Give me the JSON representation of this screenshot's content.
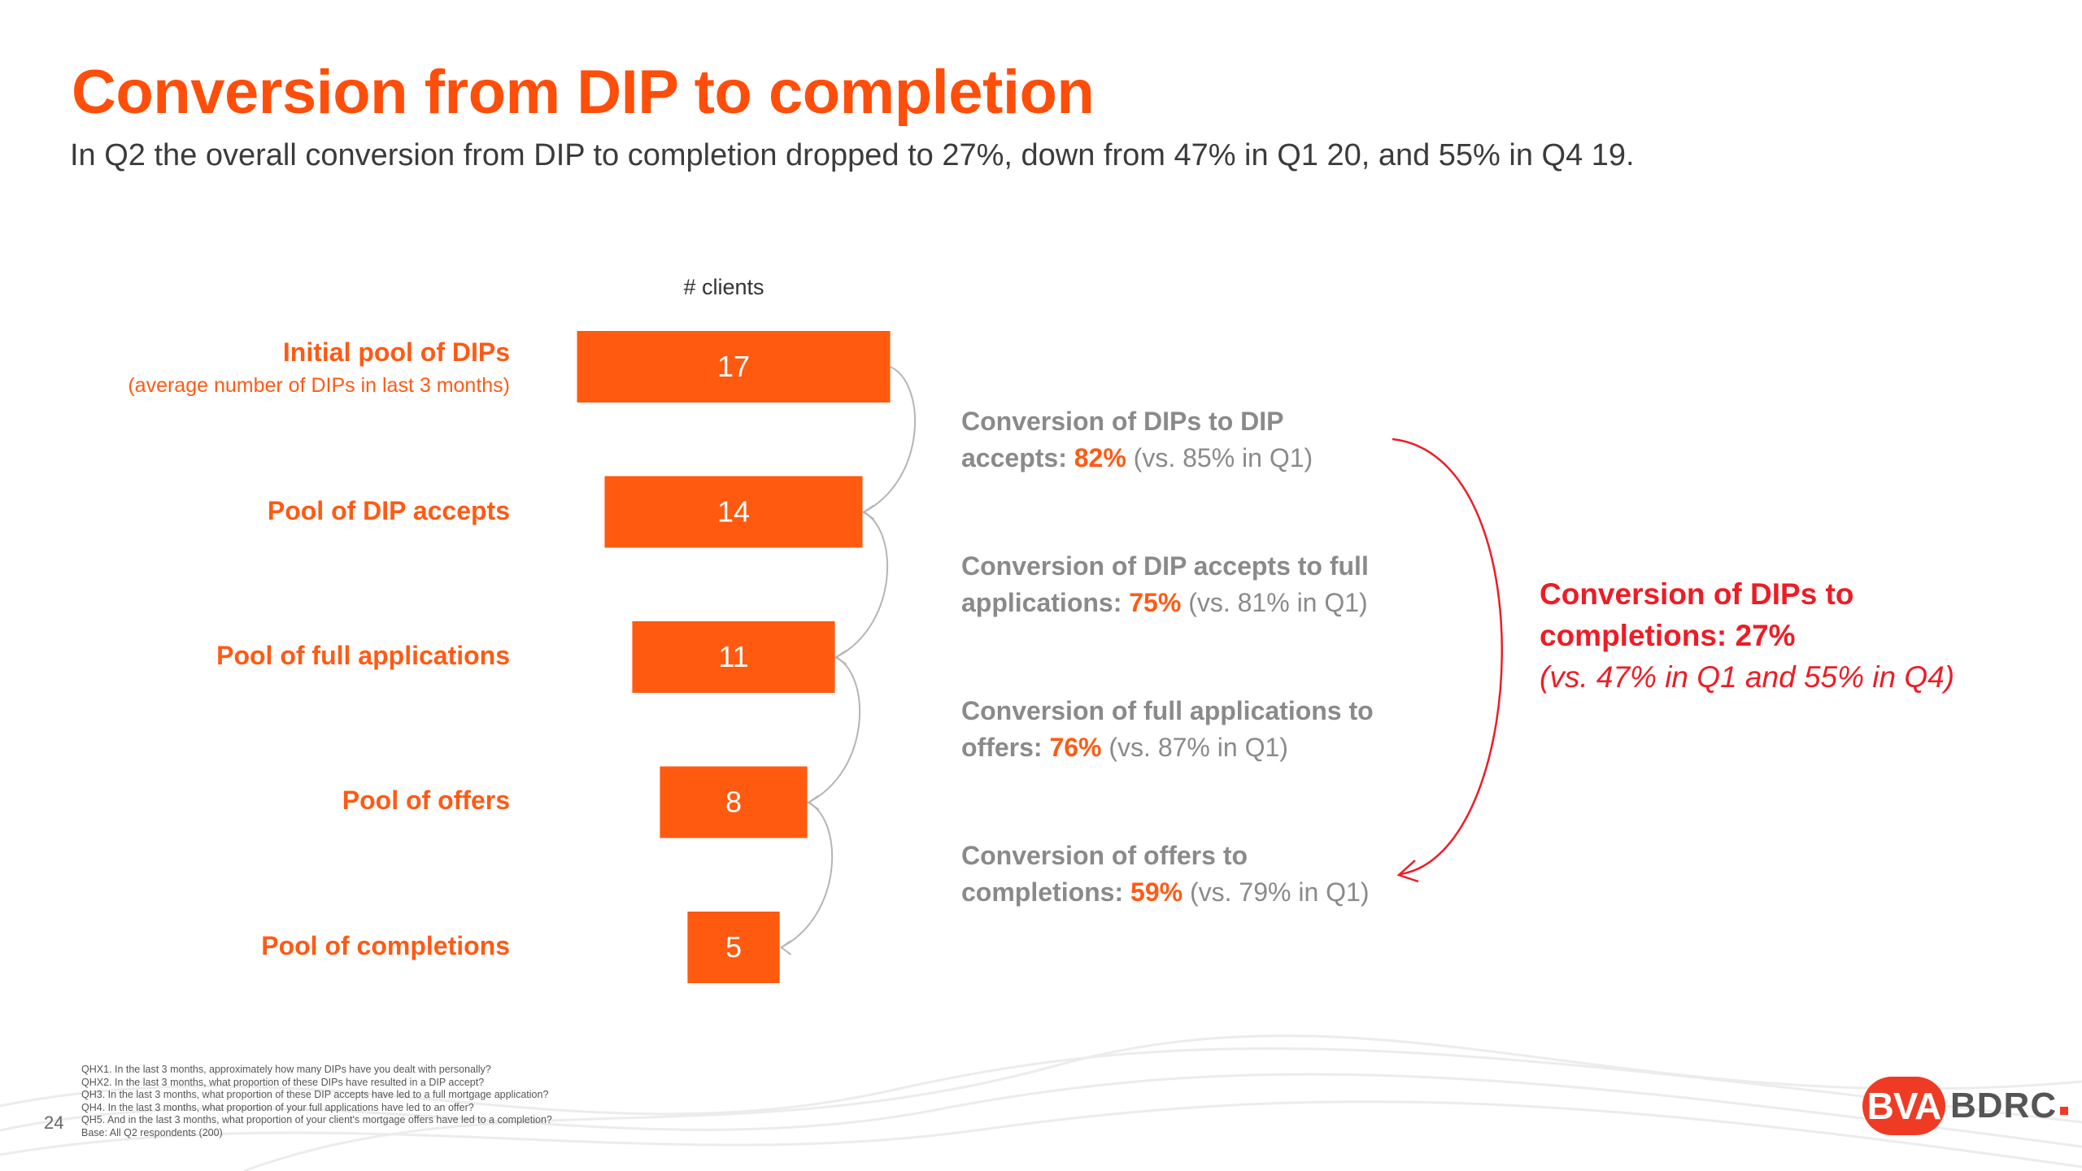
{
  "title": "Conversion from DIP to completion",
  "subtitle": "In Q2 the overall conversion from DIP to completion dropped to 27%, down from 47% in Q1 20, and 55% in Q4 19.",
  "colors": {
    "bar": "#ff5a0f",
    "accent": "#ff5a14",
    "overall": "#ee1c25",
    "muted": "#8a8a8a"
  },
  "chart_data": {
    "type": "bar",
    "orientation": "horizontal-centered-funnel",
    "title": "",
    "xlabel": "# clients",
    "ylabel": "",
    "categories": [
      "Initial pool of DIPs",
      "Pool of DIP accepts",
      "Pool of full applications",
      "Pool of offers",
      "Pool of completions"
    ],
    "category_sublabels": [
      "(average number of DIPs in last 3 months)",
      "",
      "",
      "",
      ""
    ],
    "values": [
      17,
      14,
      11,
      8,
      5
    ],
    "data_labels": [
      "17",
      "14",
      "11",
      "8",
      "5"
    ],
    "xlim": [
      0,
      17
    ],
    "grid": false
  },
  "conversions": [
    {
      "lead": "Conversion of DIPs to DIP",
      "lead2": "accepts: ",
      "pct": "82%",
      "comparison": " (vs. 85% in Q1)"
    },
    {
      "lead": "Conversion of DIP accepts to full",
      "lead2": "applications: ",
      "pct": "75%",
      "comparison": " (vs. 81% in Q1)"
    },
    {
      "lead": "Conversion of full applications to",
      "lead2": "offers: ",
      "pct": "76%",
      "comparison": " (vs. 87% in Q1)"
    },
    {
      "lead": "Conversion of offers to",
      "lead2": "completions: ",
      "pct": "59%",
      "comparison": " (vs. 79% in Q1)"
    }
  ],
  "overall": {
    "line1": "Conversion of DIPs to",
    "line2": "completions: 27%",
    "note": "(vs. 47% in Q1 and 55% in Q4)"
  },
  "footnotes": [
    "QHX1. In the last 3 months, approximately how many DIPs have you dealt with personally?",
    "QHX2. In the last 3 months, what proportion of these DIPs have resulted in a DIP accept?",
    "QH3. In the last 3 months, what proportion of these DIP accepts have led to a full mortgage application?",
    "QH4. In the last 3 months, what proportion of your full applications have led to an offer?",
    "QH5. And in the last 3 months, what proportion of your client's mortgage offers have led to a completion?",
    "Base: All Q2 respondents (200)"
  ],
  "page_number": "24",
  "logo": {
    "mark": "BVA",
    "text": "BDRC"
  }
}
